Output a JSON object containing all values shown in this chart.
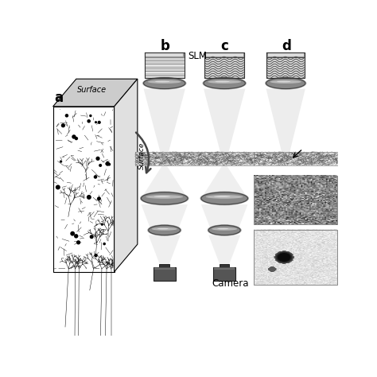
{
  "labels": {
    "a": "a",
    "b": "b",
    "c": "c",
    "d": "d",
    "slm": "SLM",
    "camera": "Camera",
    "surface": "Surface"
  },
  "colors": {
    "bg": "#ffffff",
    "black": "#000000",
    "dark": "#333333",
    "mid": "#777777",
    "light": "#aaaaaa",
    "lighter": "#cccccc",
    "slm_dark": "#888888",
    "slm_mid": "#b0b0b0",
    "slm_light": "#d8d8d8",
    "lens_dark": "#666666",
    "lens_mid": "#909090",
    "lens_light": "#c0c0c0",
    "beam": "#cccccc",
    "tissue": "#d0d0d0",
    "camera_dark": "#444444",
    "camera_body": "#666666"
  }
}
